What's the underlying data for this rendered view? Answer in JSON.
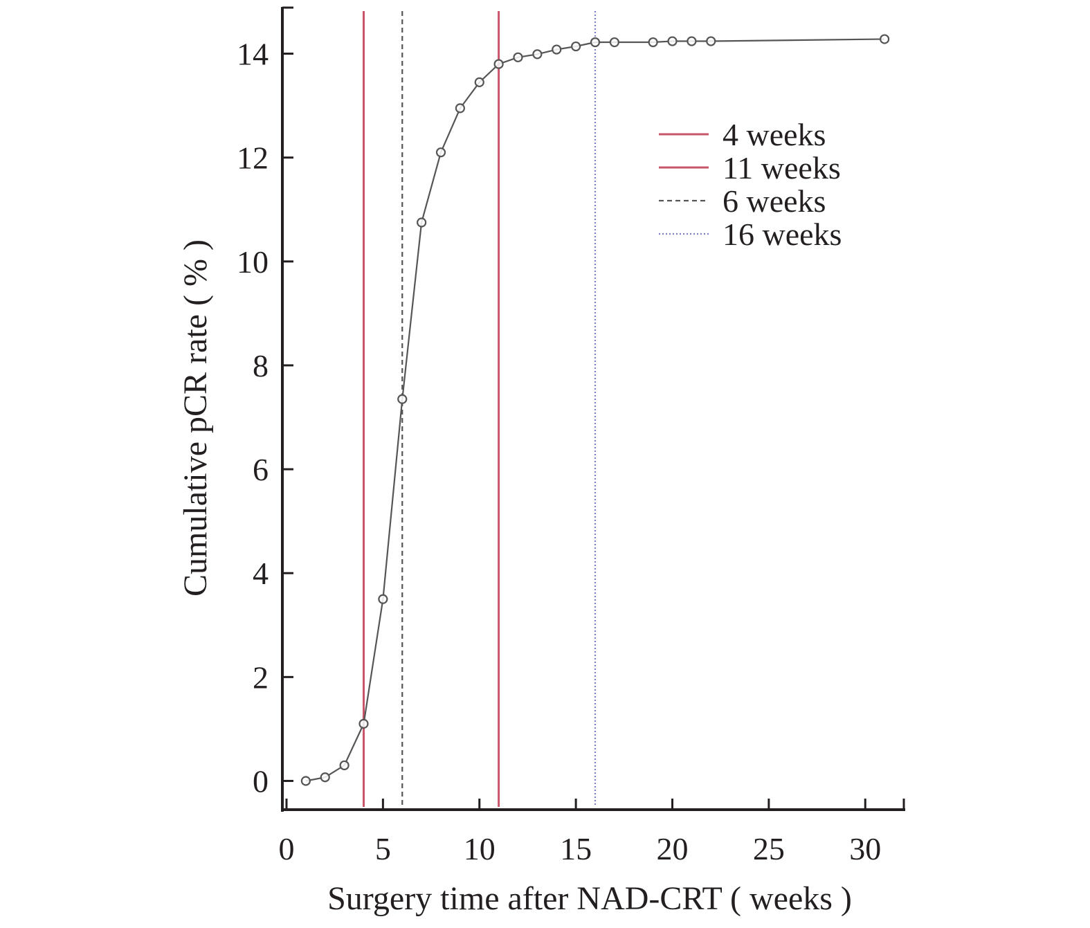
{
  "chart_data": {
    "type": "line",
    "title": "",
    "xlabel": "Surgery time after NAD-CRT ( weeks )",
    "ylabel": "Cumulative pCR rate ( % )",
    "xlim": [
      0,
      32
    ],
    "ylim": [
      -0.5,
      14.9
    ],
    "x_ticks": [
      0,
      5,
      10,
      15,
      20,
      25,
      30
    ],
    "y_ticks": [
      0,
      2,
      4,
      6,
      8,
      10,
      12,
      14
    ],
    "grid": false,
    "legend_position": "top-right",
    "series": [
      {
        "color": "#555555",
        "marker": "open-circle",
        "x": [
          1,
          2,
          3,
          4,
          5,
          6,
          7,
          8,
          9,
          10,
          11,
          12,
          13,
          14,
          15,
          16,
          17,
          19,
          20,
          21,
          22,
          31
        ],
        "y": [
          0,
          0.07,
          0.3,
          1.1,
          3.5,
          7.35,
          10.75,
          12.1,
          12.95,
          13.45,
          13.8,
          13.93,
          13.99,
          14.08,
          14.14,
          14.22,
          14.22,
          14.22,
          14.24,
          14.24,
          14.24,
          14.28
        ]
      }
    ],
    "reference_lines": [
      {
        "x": 4,
        "label": "4 weeks",
        "color": "#c8556a",
        "style": "solid"
      },
      {
        "x": 11,
        "label": "11 weeks",
        "color": "#c8556a",
        "style": "solid"
      },
      {
        "x": 6,
        "label": "6 weeks",
        "color": "#555555",
        "style": "dashed"
      },
      {
        "x": 16,
        "label": "16 weeks",
        "color": "#7a7fc8",
        "style": "dotted"
      }
    ]
  }
}
